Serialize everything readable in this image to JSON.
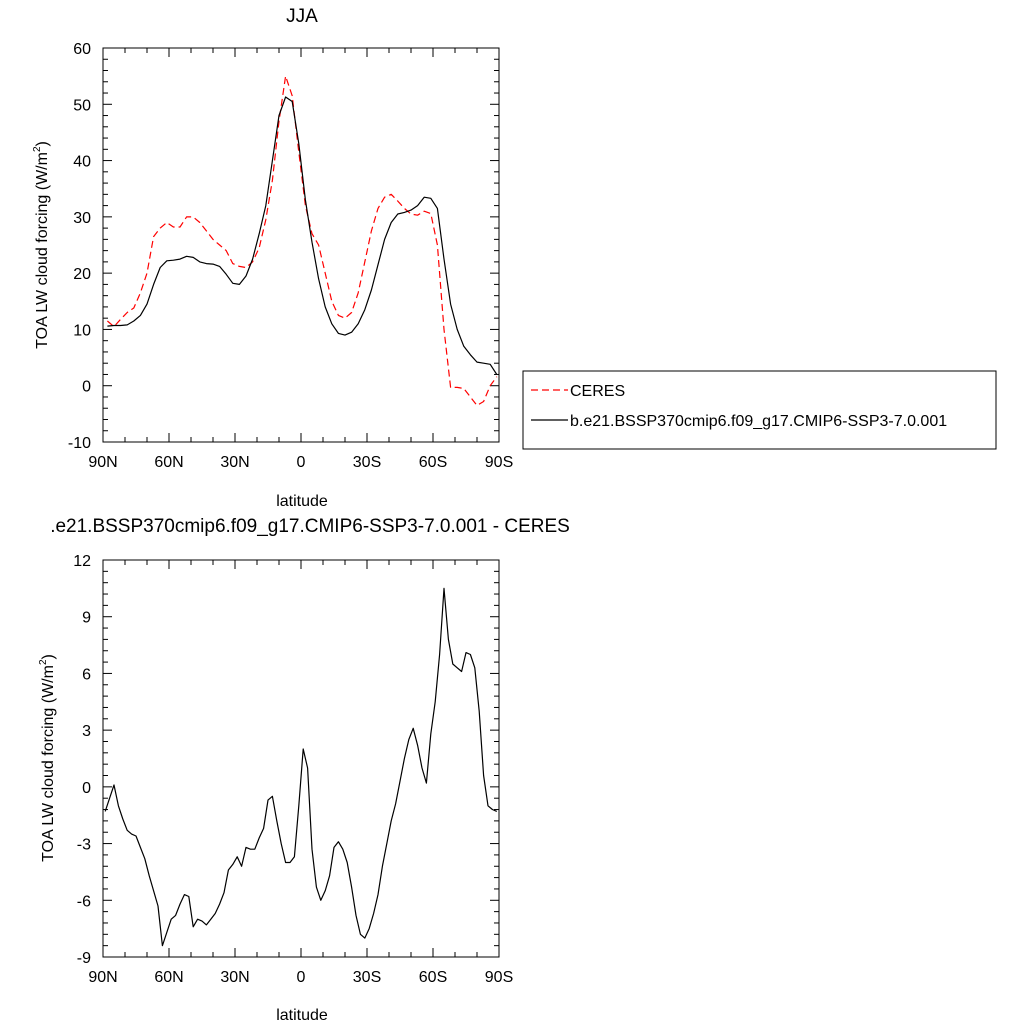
{
  "chart_data": [
    {
      "type": "line",
      "title": "JJA",
      "xlabel": "latitude",
      "ylabel": "TOA LW cloud forcing (W/m",
      "ylabel_sup": "2",
      "ylabel_close": ")",
      "xlim": [
        90,
        -90
      ],
      "ylim": [
        -10,
        60
      ],
      "x_ticks": [
        {
          "v": 90,
          "label": "90N"
        },
        {
          "v": 60,
          "label": "60N"
        },
        {
          "v": 30,
          "label": "30N"
        },
        {
          "v": 0,
          "label": "0"
        },
        {
          "v": -30,
          "label": "30S"
        },
        {
          "v": -60,
          "label": "60S"
        },
        {
          "v": -90,
          "label": "90S"
        }
      ],
      "y_ticks": [
        {
          "v": 60,
          "label": "60"
        },
        {
          "v": 50,
          "label": "50"
        },
        {
          "v": 40,
          "label": "40"
        },
        {
          "v": 30,
          "label": "30"
        },
        {
          "v": 20,
          "label": "20"
        },
        {
          "v": 10,
          "label": "10"
        },
        {
          "v": 0,
          "label": "0"
        },
        {
          "v": -10,
          "label": "-10"
        }
      ],
      "legend_position": "right",
      "series": [
        {
          "name": "CERES",
          "color": "#ff0000",
          "dash": "dashed",
          "x": [
            88,
            85,
            82,
            79,
            76,
            73,
            70,
            67,
            64,
            61,
            58,
            55,
            52,
            49,
            46,
            43,
            40,
            37,
            34,
            31,
            28,
            25,
            22,
            19,
            16,
            13,
            10,
            7,
            4,
            1,
            -2,
            -5,
            -8,
            -11,
            -14,
            -17,
            -20,
            -23,
            -26,
            -29,
            -32,
            -35,
            -38,
            -41,
            -44,
            -47,
            -50,
            -53,
            -56,
            -59,
            -62,
            -65,
            -68,
            -71,
            -74,
            -77,
            -80,
            -83,
            -86,
            -89
          ],
          "y": [
            11.5,
            10.5,
            11.8,
            13.0,
            13.8,
            16.5,
            20.0,
            26.5,
            28.0,
            29.0,
            28.2,
            28.2,
            30.0,
            30.0,
            29.0,
            27.5,
            26.0,
            25.0,
            24.0,
            21.7,
            21.2,
            21.0,
            22.0,
            24.5,
            29.5,
            36.5,
            47.0,
            55.0,
            51.5,
            41.5,
            32.0,
            27.0,
            25.0,
            20.0,
            15.0,
            12.5,
            12.0,
            13.0,
            16.5,
            22.0,
            27.5,
            31.5,
            33.5,
            34.0,
            32.8,
            31.5,
            30.5,
            30.3,
            31.0,
            30.6,
            25.0,
            10.0,
            -0.3,
            -0.3,
            -0.5,
            -2.0,
            -3.5,
            -2.8,
            0.0,
            1.6
          ]
        },
        {
          "name": "b.e21.BSSP370cmip6.f09_g17.CMIP6-SSP3-7.0.001",
          "color": "#000000",
          "dash": "solid",
          "x": [
            88,
            85,
            82,
            79,
            76,
            73,
            70,
            67,
            64,
            61,
            58,
            55,
            52,
            49,
            46,
            43,
            40,
            37,
            34,
            31,
            28,
            25,
            22,
            19,
            16,
            13,
            10,
            7,
            4,
            1,
            -2,
            -5,
            -8,
            -11,
            -14,
            -17,
            -20,
            -23,
            -26,
            -29,
            -32,
            -35,
            -38,
            -41,
            -44,
            -47,
            -50,
            -53,
            -56,
            -59,
            -62,
            -65,
            -68,
            -71,
            -74,
            -77,
            -80,
            -83,
            -86,
            -89
          ],
          "y": [
            10.6,
            10.7,
            10.7,
            10.8,
            11.5,
            12.5,
            14.5,
            18.0,
            21.0,
            22.2,
            22.3,
            22.5,
            23.0,
            22.8,
            22.0,
            21.7,
            21.6,
            21.2,
            19.8,
            18.2,
            18.0,
            19.5,
            22.5,
            27.0,
            32.0,
            40.0,
            48.0,
            51.3,
            50.5,
            43.0,
            33.0,
            25.5,
            19.0,
            14.0,
            11.0,
            9.3,
            9.0,
            9.5,
            11.0,
            13.5,
            17.0,
            21.5,
            26.0,
            29.0,
            30.5,
            30.8,
            31.2,
            32.0,
            33.5,
            33.3,
            31.5,
            22.5,
            14.5,
            10.0,
            7.0,
            5.5,
            4.2,
            4.0,
            3.8,
            2.0
          ]
        }
      ]
    },
    {
      "type": "line",
      "title": ".e21.BSSP370cmip6.f09_g17.CMIP6-SSP3-7.0.001 - CERES",
      "xlabel": "latitude",
      "ylabel": "TOA LW cloud forcing (W/m",
      "ylabel_sup": "2",
      "ylabel_close": ")",
      "xlim": [
        90,
        -90
      ],
      "ylim": [
        -9,
        12
      ],
      "x_ticks": [
        {
          "v": 90,
          "label": "90N"
        },
        {
          "v": 60,
          "label": "60N"
        },
        {
          "v": 30,
          "label": "30N"
        },
        {
          "v": 0,
          "label": "0"
        },
        {
          "v": -30,
          "label": "30S"
        },
        {
          "v": -60,
          "label": "60S"
        },
        {
          "v": -90,
          "label": "90S"
        }
      ],
      "y_ticks": [
        {
          "v": 12,
          "label": "12"
        },
        {
          "v": 9,
          "label": "9"
        },
        {
          "v": 6,
          "label": "6"
        },
        {
          "v": 3,
          "label": "3"
        },
        {
          "v": 0,
          "label": "0"
        },
        {
          "v": -3,
          "label": "-3"
        },
        {
          "v": -6,
          "label": "-6"
        },
        {
          "v": -9,
          "label": "-9"
        }
      ],
      "series": [
        {
          "name": "",
          "color": "#000000",
          "dash": "solid",
          "x": [
            89,
            87,
            85,
            83,
            81,
            79,
            77,
            75,
            73,
            71,
            69,
            67,
            65,
            63,
            61,
            59,
            57,
            55,
            53,
            51,
            49,
            47,
            45,
            43,
            41,
            39,
            37,
            35,
            33,
            31,
            29,
            27,
            25,
            23,
            21,
            19,
            17,
            15,
            13,
            11,
            9,
            7,
            5,
            3,
            1,
            -1,
            -3,
            -5,
            -7,
            -9,
            -11,
            -13,
            -15,
            -17,
            -19,
            -21,
            -23,
            -25,
            -27,
            -29,
            -31,
            -33,
            -35,
            -37,
            -39,
            -41,
            -43,
            -45,
            -47,
            -49,
            -51,
            -53,
            -55,
            -57,
            -59,
            -61,
            -63,
            -65,
            -67,
            -69,
            -71,
            -73,
            -75,
            -77,
            -79,
            -81,
            -83,
            -85,
            -87,
            -89
          ],
          "y": [
            -1.3,
            -0.6,
            0.1,
            -1.0,
            -1.7,
            -2.3,
            -2.5,
            -2.6,
            -3.2,
            -3.8,
            -4.7,
            -5.5,
            -6.3,
            -8.4,
            -7.7,
            -7.0,
            -6.8,
            -6.2,
            -5.7,
            -5.8,
            -7.4,
            -7.0,
            -7.1,
            -7.3,
            -7.0,
            -6.7,
            -6.2,
            -5.6,
            -4.4,
            -4.1,
            -3.7,
            -4.2,
            -3.2,
            -3.3,
            -3.3,
            -2.7,
            -2.2,
            -0.7,
            -0.5,
            -1.8,
            -3.0,
            -4.0,
            -4.0,
            -3.7,
            -1.0,
            2.0,
            1.0,
            -3.3,
            -5.3,
            -6.0,
            -5.5,
            -4.7,
            -3.2,
            -2.9,
            -3.3,
            -4.0,
            -5.3,
            -6.8,
            -7.8,
            -8.0,
            -7.5,
            -6.7,
            -5.7,
            -4.2,
            -3.0,
            -1.8,
            -0.9,
            0.3,
            1.5,
            2.5,
            3.1,
            2.2,
            1.0,
            0.2,
            2.8,
            4.5,
            7.0,
            10.5,
            7.8,
            6.5,
            6.3,
            6.1,
            7.1,
            7.0,
            6.3,
            4.0,
            0.6,
            -1.0,
            -1.2,
            -1.3
          ]
        }
      ]
    }
  ]
}
